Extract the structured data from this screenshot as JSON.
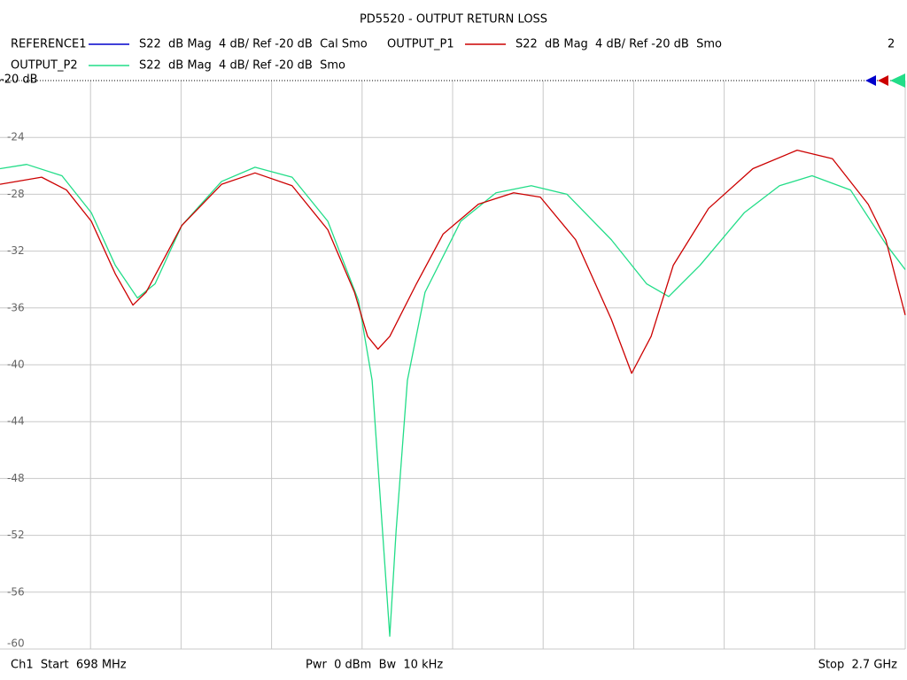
{
  "chart_data": {
    "type": "line",
    "title": "PD5520 - OUTPUT RETURN LOSS",
    "annotation": "2",
    "footer": [
      "Ch1  Start  698 MHz",
      "Pwr  0 dBm  Bw  10 kHz",
      "Stop  2.7 GHz"
    ],
    "xlim": [
      698,
      2700
    ],
    "xticks": [
      898.2,
      1098.4,
      1298.6,
      1498.8,
      1699,
      1899.2,
      2099.4,
      2299.6,
      2499.8
    ],
    "ylim": [
      -60,
      -20
    ],
    "yticks": [
      {
        "value": -20,
        "label": "-20 dB"
      },
      -24,
      -28,
      -32,
      -36,
      -40,
      -44,
      -48,
      -52,
      -56,
      -60
    ],
    "grid": true,
    "series": [
      {
        "name": "REFERENCE1",
        "color": "#0000cc",
        "description": "S22  dB Mag  4 dB/ Ref -20 dB  Cal Smo"
      },
      {
        "name": "OUTPUT_P1",
        "color": "#cc0000",
        "description": "S22  dB Mag  4 dB/ Ref -20 dB  Smo",
        "x": [
          698,
          790,
          845,
          900,
          953,
          992,
          1021,
          1100,
          1188,
          1262,
          1344,
          1423,
          1482,
          1511,
          1534,
          1560,
          1619,
          1678,
          1756,
          1834,
          1893,
          1971,
          2050,
          2095,
          2138,
          2187,
          2265,
          2363,
          2461,
          2539,
          2618,
          2657,
          2700
        ],
        "values": [
          -27.3,
          -26.8,
          -27.7,
          -29.9,
          -33.6,
          -35.8,
          -34.9,
          -30.2,
          -27.3,
          -26.5,
          -27.4,
          -30.5,
          -34.9,
          -38.0,
          -38.9,
          -38.0,
          -34.3,
          -30.8,
          -28.7,
          -27.9,
          -28.2,
          -31.2,
          -36.8,
          -40.6,
          -38.0,
          -33.0,
          -29.0,
          -26.2,
          -24.9,
          -25.5,
          -28.7,
          -31.2,
          -36.5
        ]
      },
      {
        "name": "OUTPUT_P2",
        "color": "#22dd88",
        "description": "S22  dB Mag  4 dB/ Ref -20 dB  Smo",
        "x": [
          698,
          757,
          835,
          900,
          953,
          1002,
          1041,
          1100,
          1188,
          1262,
          1344,
          1423,
          1491,
          1521,
          1544,
          1560,
          1574,
          1599,
          1638,
          1717,
          1795,
          1873,
          1952,
          2050,
          2128,
          2177,
          2246,
          2344,
          2422,
          2494,
          2579,
          2657,
          2700
        ],
        "values": [
          -26.2,
          -25.9,
          -26.7,
          -29.3,
          -33.0,
          -35.3,
          -34.3,
          -30.2,
          -27.1,
          -26.1,
          -26.8,
          -29.9,
          -35.5,
          -41.1,
          -51.7,
          -59.1,
          -51.7,
          -41.1,
          -34.9,
          -29.9,
          -27.9,
          -27.4,
          -28.0,
          -31.2,
          -34.3,
          -35.2,
          -33.0,
          -29.3,
          -27.4,
          -26.7,
          -27.7,
          -31.5,
          -33.3
        ]
      }
    ]
  }
}
